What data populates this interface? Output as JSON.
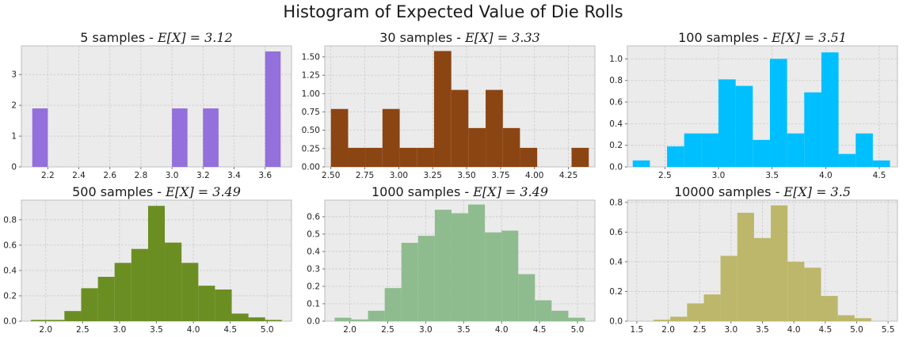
{
  "figure": {
    "title": "Histogram of Expected Value of Die Rolls"
  },
  "chart_data": [
    {
      "type": "bar",
      "title": "5 samples - E[X] = 3.12",
      "title_prefix": "5 samples - ",
      "title_math": "E[X] = 3.12",
      "color": "#9370db",
      "xlim": [
        2.03,
        3.77
      ],
      "ylim": [
        0,
        3.93
      ],
      "xticks": [
        2.2,
        2.4,
        2.6,
        2.8,
        3.0,
        3.2,
        3.4,
        3.6
      ],
      "xtick_labels": [
        "2.2",
        "2.4",
        "2.6",
        "2.8",
        "3.0",
        "3.2",
        "3.4",
        "3.6"
      ],
      "yticks": [
        0,
        1,
        2,
        3
      ],
      "ytick_labels": [
        "0",
        "1",
        "2",
        "3"
      ],
      "bin_edges": [
        2.1,
        2.2,
        2.3,
        2.4,
        2.5,
        2.6,
        2.7,
        2.8,
        2.9,
        3.0,
        3.1,
        3.2,
        3.3,
        3.4,
        3.5,
        3.6,
        3.7
      ],
      "values": [
        1.9,
        0,
        0,
        0,
        0,
        0,
        0,
        0,
        0,
        1.9,
        0,
        1.9,
        0,
        0,
        0,
        3.75
      ],
      "grid": true
    },
    {
      "type": "bar",
      "title": "30 samples - E[X] = 3.33",
      "title_prefix": "30 samples - ",
      "title_math": "E[X] = 3.33",
      "color": "#8b4513",
      "xlim": [
        2.455,
        4.445
      ],
      "ylim": [
        0,
        1.65
      ],
      "xticks": [
        2.5,
        2.75,
        3.0,
        3.25,
        3.5,
        3.75,
        4.0,
        4.25
      ],
      "xtick_labels": [
        "2.50",
        "2.75",
        "3.00",
        "3.25",
        "3.50",
        "3.75",
        "4.00",
        "4.25"
      ],
      "yticks": [
        0,
        0.25,
        0.5,
        0.75,
        1.0,
        1.25,
        1.5
      ],
      "ytick_labels": [
        "0.00",
        "0.25",
        "0.50",
        "0.75",
        "1.00",
        "1.25",
        "1.50"
      ],
      "bin_edges": [
        2.5,
        2.627,
        2.753,
        2.88,
        3.007,
        3.133,
        3.26,
        3.387,
        3.513,
        3.64,
        3.767,
        3.893,
        4.02,
        4.147,
        4.273,
        4.4
      ],
      "values": [
        0.79,
        0.26,
        0.26,
        0.79,
        0.26,
        0.26,
        1.58,
        1.05,
        0.53,
        1.05,
        0.53,
        0.26,
        0,
        0,
        0.26
      ],
      "grid": true
    },
    {
      "type": "bar",
      "title": "100 samples - E[X] = 3.51",
      "title_prefix": "100 samples - ",
      "title_math": "E[X] = 3.51",
      "color": "#00bfff",
      "xlim": [
        2.15,
        4.67
      ],
      "ylim": [
        0,
        1.12
      ],
      "xticks": [
        2.5,
        3.0,
        3.5,
        4.0,
        4.5
      ],
      "xtick_labels": [
        "2.5",
        "3.0",
        "3.5",
        "4.0",
        "4.5"
      ],
      "yticks": [
        0,
        0.2,
        0.4,
        0.6,
        0.8,
        1.0
      ],
      "ytick_labels": [
        "0.0",
        "0.2",
        "0.4",
        "0.6",
        "0.8",
        "1.0"
      ],
      "bin_edges": [
        2.2,
        2.36,
        2.52,
        2.68,
        2.84,
        3.0,
        3.16,
        3.32,
        3.48,
        3.64,
        3.8,
        3.96,
        4.12,
        4.28,
        4.44,
        4.6
      ],
      "values": [
        0.06,
        0,
        0.19,
        0.31,
        0.31,
        0.81,
        0.75,
        0.25,
        1.0,
        0.31,
        0.69,
        1.06,
        0.12,
        0.31,
        0.06
      ],
      "grid": true
    },
    {
      "type": "bar",
      "title": "500 samples - E[X] = 3.49",
      "title_prefix": "500 samples - ",
      "title_math": "E[X] = 3.49",
      "color": "#6b8e23",
      "xlim": [
        1.67,
        5.33
      ],
      "ylim": [
        0,
        0.955
      ],
      "xticks": [
        2.0,
        2.5,
        3.0,
        3.5,
        4.0,
        4.5,
        5.0
      ],
      "xtick_labels": [
        "2.0",
        "2.5",
        "3.0",
        "3.5",
        "4.0",
        "4.5",
        "5.0"
      ],
      "yticks": [
        0,
        0.2,
        0.4,
        0.6,
        0.8
      ],
      "ytick_labels": [
        "0.0",
        "0.2",
        "0.4",
        "0.6",
        "0.8"
      ],
      "bin_edges": [
        1.8,
        2.027,
        2.253,
        2.48,
        2.707,
        2.933,
        3.16,
        3.387,
        3.613,
        3.84,
        4.067,
        4.293,
        4.52,
        4.747,
        4.973,
        5.2
      ],
      "values": [
        0.01,
        0.01,
        0.08,
        0.26,
        0.35,
        0.46,
        0.57,
        0.91,
        0.62,
        0.46,
        0.28,
        0.25,
        0.06,
        0.03,
        0.01
      ],
      "grid": true
    },
    {
      "type": "bar",
      "title": "1000 samples - E[X] = 3.49",
      "title_prefix": "1000 samples - ",
      "title_math": "E[X] = 3.49",
      "color": "#8fbc8f",
      "xlim": [
        1.67,
        5.23
      ],
      "ylim": [
        0,
        0.695
      ],
      "xticks": [
        2.0,
        2.5,
        3.0,
        3.5,
        4.0,
        4.5,
        5.0
      ],
      "xtick_labels": [
        "2.0",
        "2.5",
        "3.0",
        "3.5",
        "4.0",
        "4.5",
        "5.0"
      ],
      "yticks": [
        0,
        0.1,
        0.2,
        0.3,
        0.4,
        0.5,
        0.6
      ],
      "ytick_labels": [
        "0.0",
        "0.1",
        "0.2",
        "0.3",
        "0.4",
        "0.5",
        "0.6"
      ],
      "bin_edges": [
        1.8,
        2.02,
        2.24,
        2.46,
        2.68,
        2.9,
        3.12,
        3.34,
        3.56,
        3.78,
        4.0,
        4.22,
        4.44,
        4.66,
        4.88,
        5.1
      ],
      "values": [
        0.02,
        0.01,
        0.06,
        0.19,
        0.45,
        0.49,
        0.64,
        0.62,
        0.67,
        0.51,
        0.52,
        0.27,
        0.12,
        0.06,
        0.02
      ],
      "grid": true
    },
    {
      "type": "bar",
      "title": "10000 samples - E[X] = 3.5",
      "title_prefix": "10000 samples - ",
      "title_math": "E[X] = 3.5",
      "color": "#bdb76b",
      "xlim": [
        1.35,
        5.65
      ],
      "ylim": [
        0,
        0.815
      ],
      "xticks": [
        1.5,
        2.0,
        2.5,
        3.0,
        3.5,
        4.0,
        4.5,
        5.0,
        5.5
      ],
      "xtick_labels": [
        "1.5",
        "2.0",
        "2.5",
        "3.0",
        "3.5",
        "4.0",
        "4.5",
        "5.0",
        "5.5"
      ],
      "yticks": [
        0,
        0.2,
        0.4,
        0.6,
        0.8
      ],
      "ytick_labels": [
        "0.0",
        "0.2",
        "0.4",
        "0.6",
        "0.8"
      ],
      "bin_edges": [
        1.5,
        1.767,
        2.033,
        2.3,
        2.567,
        2.833,
        3.1,
        3.367,
        3.633,
        3.9,
        4.167,
        4.433,
        4.7,
        4.967,
        5.233,
        5.5
      ],
      "values": [
        0,
        0.01,
        0.03,
        0.12,
        0.18,
        0.44,
        0.73,
        0.56,
        0.78,
        0.4,
        0.36,
        0.17,
        0.04,
        0.02,
        0
      ],
      "grid": true
    }
  ]
}
